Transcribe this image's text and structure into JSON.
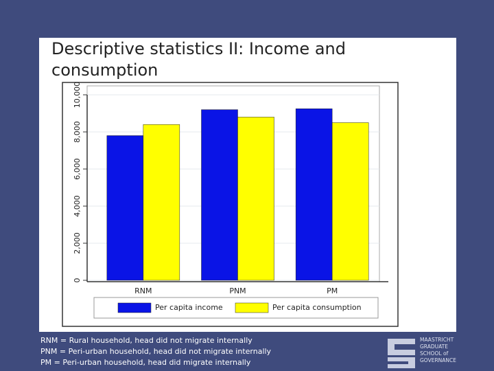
{
  "slide_title": "Descriptive statistics II: Income and consumption",
  "chart_data": {
    "type": "bar",
    "categories": [
      "RNM",
      "PNM",
      "PM"
    ],
    "series": [
      {
        "name": "Per capita income",
        "color": "#0a14e6",
        "values": [
          7800,
          9200,
          9250
        ]
      },
      {
        "name": "Per capita consumption",
        "color": "#ffff00",
        "values": [
          8400,
          8800,
          8500
        ]
      }
    ],
    "ylim": [
      0,
      10000
    ],
    "yticks": [
      0,
      {
        "value": 2000,
        "label": "2,000"
      },
      {
        "value": 4000,
        "label": "4,000"
      },
      {
        "value": 6000,
        "label": "6,000"
      },
      {
        "value": 8000,
        "label": "8,000"
      },
      {
        "value": 10000,
        "label": "10,000"
      }
    ],
    "grid": true
  },
  "footnotes": [
    "RNM = Rural household, head did not migrate internally",
    "PNM = Peri-urban household, head did not migrate internally",
    "PM = Peri-urban household, head did migrate internally"
  ],
  "logo": {
    "lines": [
      "MAASTRICHT",
      "GRADUATE",
      "SCHOOL of",
      "GOVERNANCE"
    ]
  }
}
